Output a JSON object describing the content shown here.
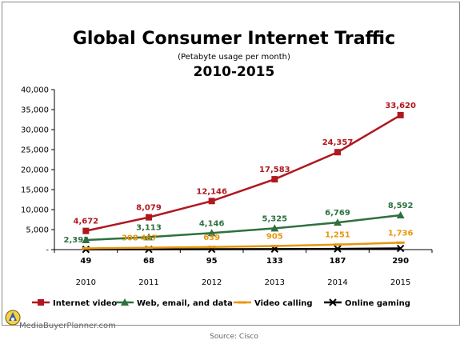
{
  "chart_data": {
    "type": "line",
    "title": "Global Consumer Internet Traffic",
    "subtitle": "(Petabyte usage per month)",
    "subtitle2": "2010-2015",
    "x": [
      "2010",
      "2011",
      "2012",
      "2013",
      "2014",
      "2015"
    ],
    "ylim": [
      0,
      40000
    ],
    "yticks": [
      0,
      5000,
      10000,
      15000,
      20000,
      25000,
      30000,
      35000,
      40000
    ],
    "ytick_labels": [
      "-",
      "5,000",
      "10,000",
      "15,000",
      "20,000",
      "25,000",
      "30,000",
      "35,000",
      "40,000"
    ],
    "legend_position": "bottom",
    "grid": false,
    "series": [
      {
        "name": "Internet video",
        "color": "#b0171f",
        "marker": "square",
        "values": [
          4672,
          8079,
          12146,
          17583,
          24357,
          33620
        ],
        "labels": [
          "4,672",
          "8,079",
          "12,146",
          "17,583",
          "24,357",
          "33,620"
        ]
      },
      {
        "name": "Web, email, and data",
        "color": "#2e7040",
        "marker": "triangle",
        "values": [
          2393,
          3113,
          4146,
          5325,
          6769,
          8592
        ],
        "labels": [
          "2,393",
          "3,113",
          "4,146",
          "5,325",
          "6,769",
          "8,592"
        ]
      },
      {
        "name": "Video calling",
        "color": "#e8960f",
        "marker": "dash",
        "values": [
          308,
          467,
          639,
          905,
          1251,
          1736
        ],
        "labels": [
          "308",
          "467",
          "639",
          "905",
          "1,251",
          "1,736"
        ]
      },
      {
        "name": "Online gaming",
        "color": "#000000",
        "marker": "x",
        "values": [
          49,
          68,
          95,
          133,
          187,
          290
        ],
        "labels": [
          "49",
          "68",
          "95",
          "133",
          "187",
          "290"
        ]
      }
    ]
  },
  "watermark": "MediaBuyerPlanner.com",
  "source": "Source: Cisco"
}
